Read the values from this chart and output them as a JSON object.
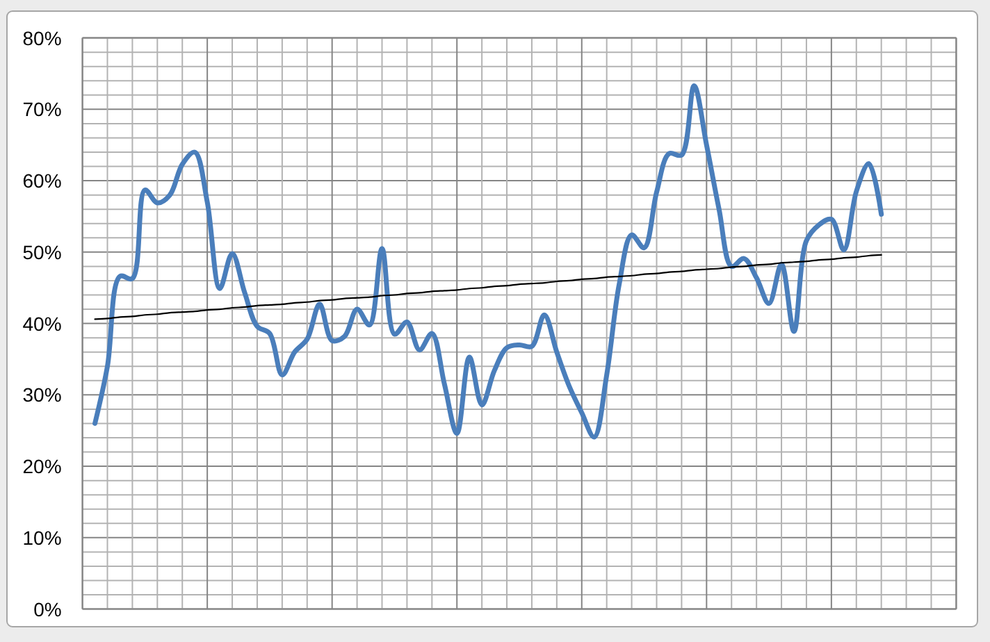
{
  "chart_data": {
    "type": "line",
    "categories": [
      null,
      null,
      null,
      null,
      null,
      null,
      null,
      null,
      null,
      null,
      null,
      null,
      null,
      null,
      null,
      null,
      null,
      null,
      null,
      null,
      null,
      null,
      null,
      null,
      null,
      null,
      null,
      null,
      null,
      null,
      null,
      null,
      null,
      null,
      null,
      null,
      null,
      null,
      null,
      null,
      null,
      null,
      null,
      null,
      null,
      null,
      null,
      null,
      null,
      null,
      null,
      null,
      null,
      null,
      null,
      null,
      null,
      null,
      null,
      null,
      null,
      null,
      null,
      null,
      null,
      null,
      null,
      null,
      null,
      null,
      null
    ],
    "ylim": [
      0,
      80
    ],
    "yticks": [
      {
        "value": 0,
        "label": "0%"
      },
      {
        "value": 2,
        "label": null
      },
      {
        "value": 4,
        "label": null
      },
      {
        "value": 6,
        "label": null
      },
      {
        "value": 8,
        "label": null
      },
      {
        "value": 10,
        "label": "10%"
      },
      {
        "value": 12,
        "label": null
      },
      {
        "value": 14,
        "label": null
      },
      {
        "value": 16,
        "label": null
      },
      {
        "value": 18,
        "label": null
      },
      {
        "value": 20,
        "label": "20%"
      },
      {
        "value": 22,
        "label": null
      },
      {
        "value": 24,
        "label": null
      },
      {
        "value": 26,
        "label": null
      },
      {
        "value": 28,
        "label": null
      },
      {
        "value": 30,
        "label": "30%"
      },
      {
        "value": 32,
        "label": null
      },
      {
        "value": 34,
        "label": null
      },
      {
        "value": 36,
        "label": null
      },
      {
        "value": 38,
        "label": null
      },
      {
        "value": 40,
        "label": "40%"
      },
      {
        "value": 42,
        "label": null
      },
      {
        "value": 44,
        "label": null
      },
      {
        "value": 46,
        "label": null
      },
      {
        "value": 48,
        "label": null
      },
      {
        "value": 50,
        "label": "50%"
      },
      {
        "value": 52,
        "label": null
      },
      {
        "value": 54,
        "label": null
      },
      {
        "value": 56,
        "label": null
      },
      {
        "value": 58,
        "label": null
      },
      {
        "value": 60,
        "label": "60%"
      },
      {
        "value": 62,
        "label": null
      },
      {
        "value": 64,
        "label": null
      },
      {
        "value": 66,
        "label": null
      },
      {
        "value": 68,
        "label": null
      },
      {
        "value": 70,
        "label": "70%"
      },
      {
        "value": 72,
        "label": null
      },
      {
        "value": 74,
        "label": null
      },
      {
        "value": 76,
        "label": null
      },
      {
        "value": 78,
        "label": null
      },
      {
        "value": 80,
        "label": "80%"
      }
    ],
    "tick_labels": "y",
    "grid": true,
    "series": [
      {
        "color": "#4a7ebb",
        "values": [
          null,
          26.0,
          34.0,
          46.6,
          46.3,
          58.7,
          56.9,
          58.0,
          62.3,
          64.0,
          57.0,
          44.9,
          49.8,
          44.3,
          39.6,
          38.6,
          32.8,
          36.0,
          37.8,
          42.7,
          37.6,
          38.2,
          42.0,
          39.8,
          50.5,
          38.5,
          40.2,
          36.3,
          38.6,
          31.5,
          24.6,
          35.3,
          28.6,
          33.4,
          36.6,
          37.0,
          36.8,
          41.2,
          36.0,
          31.2,
          27.5,
          24.1,
          32.8,
          45.5,
          52.4,
          50.6,
          58.4,
          63.8,
          63.6,
          73.3,
          65.0,
          56.0,
          48.0,
          49.1,
          46.4,
          42.8,
          48.3,
          38.9,
          51.6,
          53.8,
          54.6,
          50.3,
          58.5,
          62.4,
          55.3,
          null,
          null,
          null,
          null,
          null,
          null
        ]
      },
      {
        "type": "line",
        "color": "#000000",
        "values": [
          null,
          40.6,
          40.7,
          40.9,
          41.0,
          41.2,
          41.3,
          41.5,
          41.6,
          41.7,
          41.9,
          42.0,
          42.2,
          42.3,
          42.5,
          42.6,
          42.7,
          42.9,
          43.0,
          43.2,
          43.3,
          43.5,
          43.6,
          43.7,
          43.9,
          44.0,
          44.2,
          44.3,
          44.5,
          44.6,
          44.7,
          44.9,
          45.0,
          45.2,
          45.3,
          45.5,
          45.6,
          45.7,
          45.9,
          46.0,
          46.2,
          46.3,
          46.5,
          46.6,
          46.7,
          46.9,
          47.0,
          47.2,
          47.3,
          47.5,
          47.6,
          47.7,
          47.9,
          48.0,
          48.2,
          48.3,
          48.5,
          48.6,
          48.7,
          48.9,
          49.0,
          49.2,
          49.3,
          49.5,
          49.6,
          null,
          null,
          null,
          null,
          null,
          null
        ]
      }
    ]
  }
}
